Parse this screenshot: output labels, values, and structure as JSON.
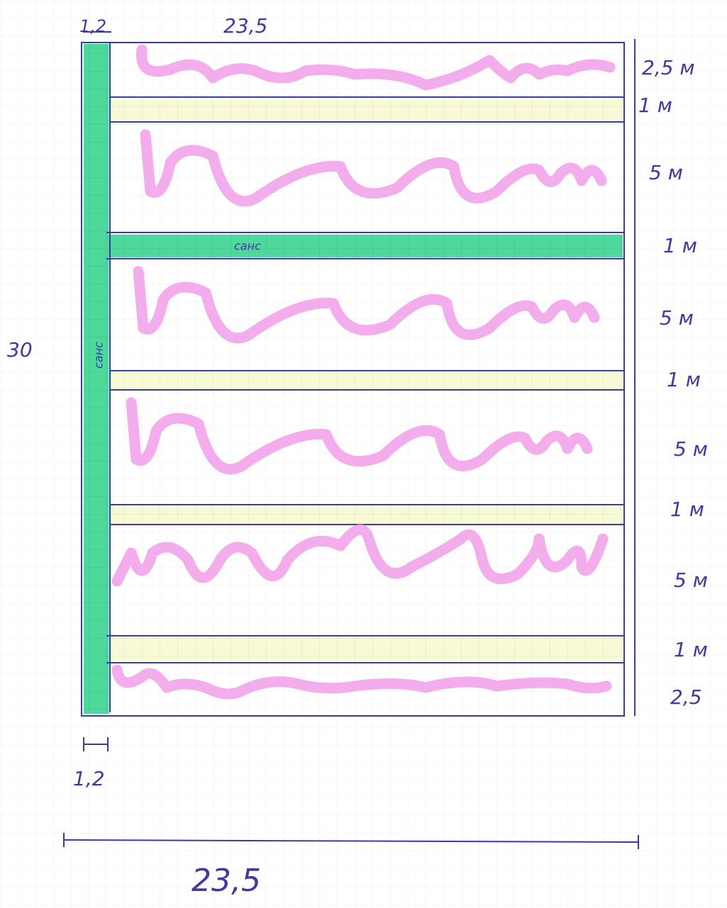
{
  "dimensions": {
    "top_left": "1,2",
    "top_width": "23,5",
    "height": "30",
    "bottom_left": "1,2",
    "bottom_width": "23,5"
  },
  "path_label_horizontal": "санс",
  "path_label_vertical": "санс",
  "rows": [
    "2,5 м",
    "1 м",
    "5 м",
    "1 м",
    "5 м",
    "1 м",
    "5 м",
    "1 м",
    "5 м",
    "1 м",
    "2,5"
  ]
}
